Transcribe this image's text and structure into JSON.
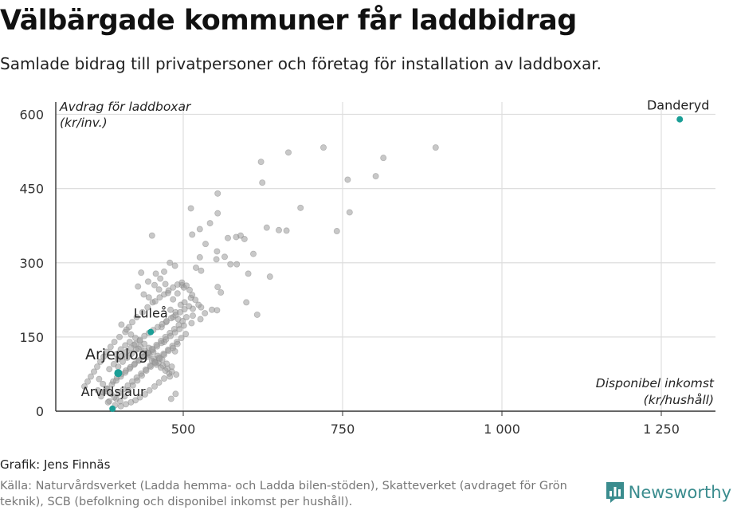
{
  "header": {
    "title": "Välbärgade kommuner får laddbidrag",
    "subtitle": "Samlade bidrag till privatpersoner och företag för installation av laddboxar."
  },
  "footer": {
    "credit": "Grafik: Jens Finnäs",
    "source": "Källa: Naturvårdsverket (Ladda hemma- och Ladda bilen-stöden), Skatteverket (avdraget för Grön teknik), SCB (befolkning och disponibel inkomst per hushåll).",
    "brand": "Newsworthy",
    "brand_icon": "newsworthy-bar-chart-logo-icon",
    "brand_color": "#3a8c8e"
  },
  "chart_data": {
    "type": "scatter",
    "ylabel_lines": [
      "Avdrag för laddboxar",
      "(kr/inv.)"
    ],
    "xlabel_lines": [
      "Disponibel inkomst",
      "(kr/hushåll)"
    ],
    "xlim": [
      300,
      1335
    ],
    "ylim": [
      0,
      625
    ],
    "x_ticks": [
      500,
      750,
      1000,
      1250
    ],
    "x_tick_labels": [
      "500",
      "750",
      "1 000",
      "1 250"
    ],
    "y_ticks": [
      0,
      150,
      300,
      450,
      600
    ],
    "y_tick_labels": [
      "0",
      "150",
      "300",
      "450",
      "600"
    ],
    "grid": true,
    "colors": {
      "points": "#9a9a9a",
      "highlight": "#1a9e96",
      "grid": "#dedede",
      "axis": "#333333"
    },
    "highlighted": [
      {
        "name": "Danderyd",
        "x": 1279,
        "y": 590
      },
      {
        "name": "Luleå",
        "x": 449,
        "y": 160
      },
      {
        "name": "Arjeplog",
        "x": 398,
        "y": 77
      },
      {
        "name": "Arvidsjaur",
        "x": 389,
        "y": 5
      }
    ],
    "points": [
      [
        896,
        533
      ],
      [
        720,
        533
      ],
      [
        665,
        523
      ],
      [
        814,
        512
      ],
      [
        622,
        504
      ],
      [
        758,
        468
      ],
      [
        802,
        475
      ],
      [
        624,
        462
      ],
      [
        554,
        440
      ],
      [
        684,
        411
      ],
      [
        761,
        402
      ],
      [
        512,
        410
      ],
      [
        554,
        400
      ],
      [
        542,
        380
      ],
      [
        526,
        368
      ],
      [
        631,
        371
      ],
      [
        650,
        366
      ],
      [
        662,
        365
      ],
      [
        741,
        364
      ],
      [
        514,
        357
      ],
      [
        451,
        355
      ],
      [
        570,
        350
      ],
      [
        590,
        355
      ],
      [
        596,
        348
      ],
      [
        583,
        352
      ],
      [
        535,
        338
      ],
      [
        610,
        318
      ],
      [
        553,
        323
      ],
      [
        565,
        312
      ],
      [
        526,
        311
      ],
      [
        552,
        307
      ],
      [
        574,
        297
      ],
      [
        584,
        297
      ],
      [
        602,
        278
      ],
      [
        520,
        290
      ],
      [
        528,
        284
      ],
      [
        636,
        272
      ],
      [
        479,
        300
      ],
      [
        487,
        294
      ],
      [
        470,
        282
      ],
      [
        554,
        251
      ],
      [
        559,
        240
      ],
      [
        498,
        255
      ],
      [
        501,
        250
      ],
      [
        599,
        220
      ],
      [
        553,
        204
      ],
      [
        545,
        205
      ],
      [
        528,
        210
      ],
      [
        515,
        207
      ],
      [
        534,
        198
      ],
      [
        616,
        195
      ],
      [
        527,
        186
      ],
      [
        515,
        193
      ],
      [
        513,
        178
      ],
      [
        484,
        226
      ],
      [
        491,
        238
      ],
      [
        487,
        121
      ],
      [
        480,
        205
      ],
      [
        484,
        190
      ],
      [
        492,
        186
      ],
      [
        473,
        180
      ],
      [
        466,
        170
      ],
      [
        470,
        140
      ],
      [
        488,
        200
      ],
      [
        496,
        215
      ],
      [
        502,
        220
      ],
      [
        512,
        229
      ],
      [
        476,
        239
      ],
      [
        462,
        246
      ],
      [
        455,
        255
      ],
      [
        472,
        257
      ],
      [
        464,
        268
      ],
      [
        457,
        278
      ],
      [
        445,
        262
      ],
      [
        434,
        280
      ],
      [
        429,
        252
      ],
      [
        438,
        236
      ],
      [
        446,
        230
      ],
      [
        452,
        220
      ],
      [
        444,
        210
      ],
      [
        436,
        200
      ],
      [
        427,
        190
      ],
      [
        420,
        180
      ],
      [
        415,
        170
      ],
      [
        409,
        160
      ],
      [
        400,
        150
      ],
      [
        392,
        140
      ],
      [
        386,
        130
      ],
      [
        380,
        120
      ],
      [
        375,
        110
      ],
      [
        370,
        100
      ],
      [
        365,
        90
      ],
      [
        360,
        80
      ],
      [
        355,
        70
      ],
      [
        350,
        60
      ],
      [
        345,
        50
      ],
      [
        403,
        175
      ],
      [
        411,
        165
      ],
      [
        418,
        155
      ],
      [
        425,
        148
      ],
      [
        432,
        142
      ],
      [
        439,
        136
      ],
      [
        446,
        128
      ],
      [
        453,
        120
      ],
      [
        460,
        112
      ],
      [
        467,
        104
      ],
      [
        474,
        96
      ],
      [
        482,
        90
      ],
      [
        478,
        76
      ],
      [
        470,
        66
      ],
      [
        462,
        58
      ],
      [
        455,
        50
      ],
      [
        447,
        42
      ],
      [
        440,
        34
      ],
      [
        432,
        28
      ],
      [
        425,
        22
      ],
      [
        418,
        18
      ],
      [
        410,
        14
      ],
      [
        402,
        10
      ],
      [
        395,
        25
      ],
      [
        387,
        35
      ],
      [
        380,
        45
      ],
      [
        374,
        55
      ],
      [
        368,
        65
      ],
      [
        398,
        90
      ],
      [
        405,
        100
      ],
      [
        412,
        108
      ],
      [
        419,
        116
      ],
      [
        426,
        124
      ],
      [
        433,
        130
      ],
      [
        440,
        122
      ],
      [
        447,
        114
      ],
      [
        454,
        106
      ],
      [
        461,
        98
      ],
      [
        468,
        92
      ],
      [
        475,
        86
      ],
      [
        482,
        80
      ],
      [
        489,
        74
      ],
      [
        395,
        115
      ],
      [
        402,
        125
      ],
      [
        409,
        133
      ],
      [
        416,
        140
      ],
      [
        423,
        134
      ],
      [
        430,
        126
      ],
      [
        437,
        118
      ],
      [
        444,
        110
      ],
      [
        451,
        102
      ],
      [
        458,
        94
      ],
      [
        465,
        88
      ],
      [
        472,
        82
      ],
      [
        479,
        70
      ],
      [
        384,
        85
      ],
      [
        391,
        95
      ],
      [
        397,
        105
      ],
      [
        404,
        112
      ],
      [
        411,
        120
      ],
      [
        418,
        128
      ],
      [
        425,
        136
      ],
      [
        432,
        144
      ],
      [
        439,
        152
      ],
      [
        446,
        158
      ],
      [
        453,
        164
      ],
      [
        460,
        170
      ],
      [
        467,
        176
      ],
      [
        474,
        182
      ],
      [
        481,
        188
      ],
      [
        488,
        194
      ],
      [
        495,
        200
      ],
      [
        502,
        206
      ],
      [
        509,
        212
      ],
      [
        390,
        60
      ],
      [
        396,
        68
      ],
      [
        403,
        75
      ],
      [
        410,
        82
      ],
      [
        417,
        89
      ],
      [
        424,
        96
      ],
      [
        431,
        103
      ],
      [
        438,
        110
      ],
      [
        445,
        117
      ],
      [
        452,
        124
      ],
      [
        459,
        131
      ],
      [
        466,
        138
      ],
      [
        473,
        145
      ],
      [
        480,
        152
      ],
      [
        487,
        159
      ],
      [
        494,
        166
      ],
      [
        501,
        173
      ],
      [
        505,
        190
      ],
      [
        499,
        182
      ],
      [
        493,
        174
      ],
      [
        486,
        166
      ],
      [
        479,
        158
      ],
      [
        472,
        150
      ],
      [
        465,
        142
      ],
      [
        458,
        134
      ],
      [
        451,
        126
      ],
      [
        444,
        118
      ],
      [
        437,
        110
      ],
      [
        430,
        102
      ],
      [
        423,
        94
      ],
      [
        416,
        86
      ],
      [
        409,
        78
      ],
      [
        402,
        70
      ],
      [
        395,
        62
      ],
      [
        388,
        54
      ],
      [
        381,
        46
      ],
      [
        374,
        38
      ],
      [
        384,
        20
      ],
      [
        392,
        28
      ],
      [
        399,
        36
      ],
      [
        406,
        44
      ],
      [
        413,
        52
      ],
      [
        420,
        60
      ],
      [
        427,
        68
      ],
      [
        434,
        76
      ],
      [
        441,
        84
      ],
      [
        448,
        92
      ],
      [
        455,
        100
      ],
      [
        462,
        108
      ],
      [
        469,
        116
      ],
      [
        476,
        124
      ],
      [
        483,
        132
      ],
      [
        490,
        140
      ],
      [
        497,
        148
      ],
      [
        504,
        156
      ],
      [
        481,
        25
      ],
      [
        488,
        35
      ],
      [
        377,
        40
      ],
      [
        371,
        30
      ],
      [
        366,
        42
      ],
      [
        382,
        18
      ],
      [
        393,
        12
      ],
      [
        401,
        20
      ],
      [
        408,
        30
      ],
      [
        414,
        42
      ],
      [
        421,
        52
      ],
      [
        428,
        62
      ],
      [
        435,
        72
      ],
      [
        442,
        82
      ],
      [
        449,
        90
      ],
      [
        456,
        98
      ],
      [
        463,
        106
      ],
      [
        470,
        114
      ],
      [
        477,
        122
      ],
      [
        484,
        128
      ],
      [
        491,
        136
      ],
      [
        456,
        222
      ],
      [
        463,
        230
      ],
      [
        470,
        236
      ],
      [
        477,
        244
      ],
      [
        484,
        250
      ],
      [
        491,
        256
      ],
      [
        498,
        260
      ],
      [
        505,
        254
      ],
      [
        510,
        245
      ],
      [
        514,
        235
      ],
      [
        519,
        225
      ],
      [
        524,
        215
      ]
    ]
  }
}
